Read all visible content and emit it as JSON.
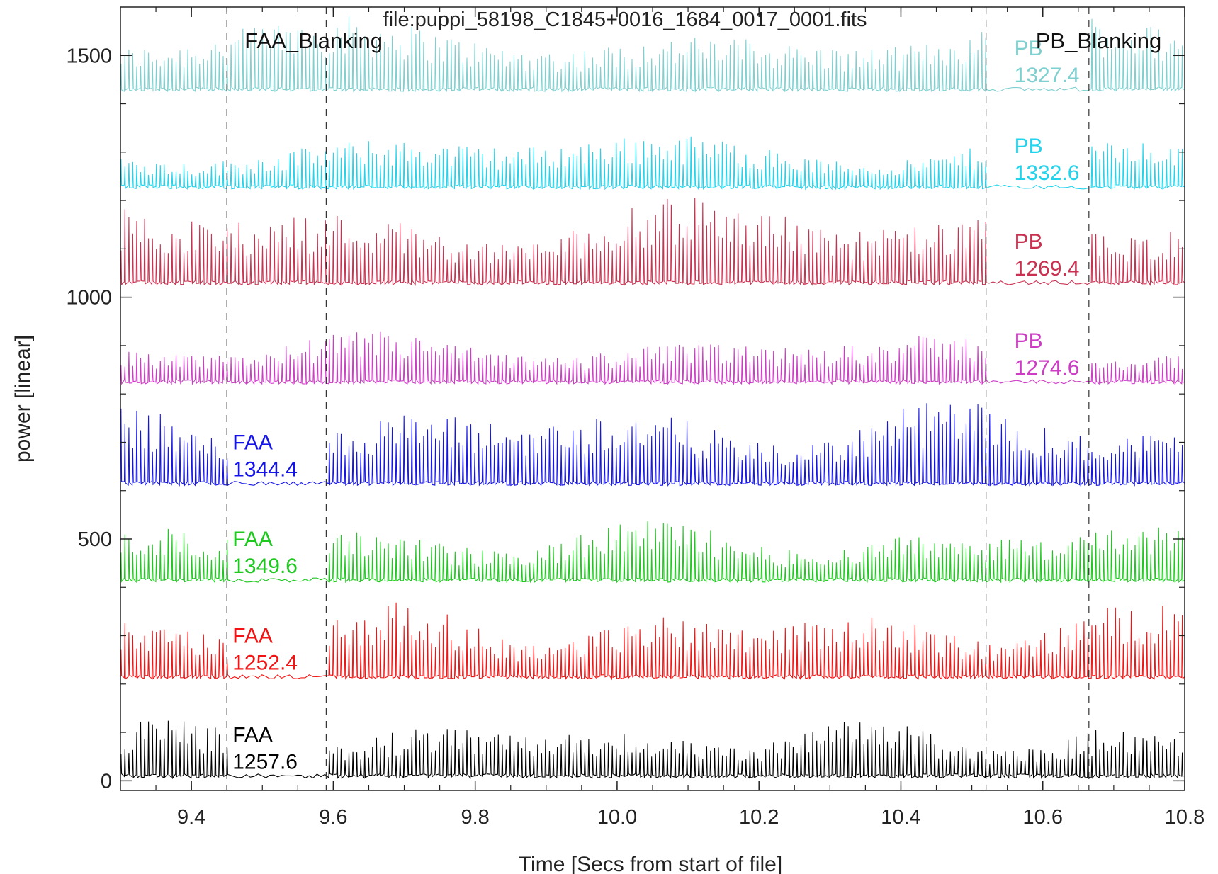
{
  "chart_data": {
    "type": "line",
    "title": "file:puppi_58198_C1845+0016_1684_0017_0001.fits",
    "xlabel": "Time [Secs from start of file]",
    "ylabel": "power [linear]",
    "xlim": [
      9.3,
      10.8
    ],
    "ylim": [
      -20,
      1600
    ],
    "x_ticks": [
      9.4,
      9.6,
      9.8,
      10.0,
      10.2,
      10.4,
      10.6,
      10.8
    ],
    "x_tick_labels": [
      "9.4",
      "9.6",
      "9.8",
      "10.0",
      "10.2",
      "10.4",
      "10.6",
      "10.8"
    ],
    "y_ticks": [
      0,
      500,
      1000,
      1500
    ],
    "y_tick_labels": [
      "0",
      "500",
      "1000",
      "1500"
    ],
    "grid": false,
    "annotations": [
      {
        "text": "FAA_Blanking",
        "x": 9.475,
        "y": 1530
      },
      {
        "text": "PB_Blanking",
        "x": 10.59,
        "y": 1530
      }
    ],
    "blanking_lines_x": [
      9.45,
      9.59,
      10.52,
      10.665
    ],
    "series": [
      {
        "label_1": "PB",
        "label_2": "1327.4",
        "color": "#7ecfcf",
        "baseline": 1430,
        "amplitude": 110,
        "label_x": 10.56,
        "blanked": "pb"
      },
      {
        "label_1": "PB",
        "label_2": "1332.6",
        "color": "#22d3ec",
        "baseline": 1228,
        "amplitude": 85,
        "label_x": 10.56,
        "blanked": "pb"
      },
      {
        "label_1": "PB",
        "label_2": "1269.4",
        "color": "#c83250",
        "baseline": 1030,
        "amplitude": 130,
        "label_x": 10.56,
        "blanked": "pb"
      },
      {
        "label_1": "PB",
        "label_2": "1274.6",
        "color": "#cc3cc4",
        "baseline": 825,
        "amplitude": 75,
        "label_x": 10.56,
        "blanked": "pb"
      },
      {
        "label_1": "FAA",
        "label_2": "1344.4",
        "color": "#1414e6",
        "baseline": 615,
        "amplitude": 125,
        "label_x": 9.458,
        "blanked": "faa"
      },
      {
        "label_1": "FAA",
        "label_2": "1349.6",
        "color": "#1ec81e",
        "baseline": 415,
        "amplitude": 90,
        "label_x": 9.458,
        "blanked": "faa"
      },
      {
        "label_1": "FAA",
        "label_2": "1252.4",
        "color": "#f01414",
        "baseline": 215,
        "amplitude": 110,
        "label_x": 9.458,
        "blanked": "faa"
      },
      {
        "label_1": "FAA",
        "label_2": "1257.6",
        "color": "#000000",
        "baseline": 10,
        "amplitude": 85,
        "label_x": 9.458,
        "blanked": "faa"
      }
    ]
  }
}
